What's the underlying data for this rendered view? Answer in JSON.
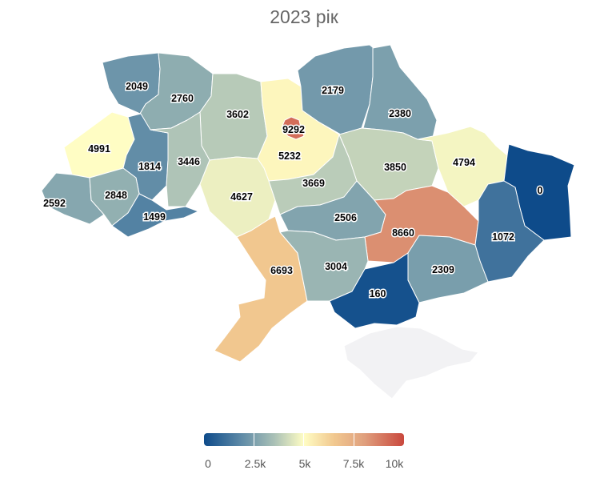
{
  "title": "2023 рік",
  "chart_data": {
    "type": "choropleth",
    "title": "2023 рік",
    "color_scale": {
      "min": 0,
      "max": 10000,
      "ticks": [
        "0",
        "2.5k",
        "5k",
        "7.5k",
        "10k"
      ],
      "colors": [
        "#0e4b8a",
        "#5b88a6",
        "#a9c0b6",
        "#fffdc4",
        "#f1c88f",
        "#e0a07e",
        "#c9483d"
      ]
    },
    "regions": [
      {
        "id": "volyn",
        "value": 2049,
        "label": "2049"
      },
      {
        "id": "rivne",
        "value": 2760,
        "label": "2760"
      },
      {
        "id": "zhytomyr",
        "value": 3602,
        "label": "3602"
      },
      {
        "id": "kyiv-oblast",
        "value": 5232,
        "label": "5232"
      },
      {
        "id": "kyiv-city",
        "value": 9292,
        "label": "9292"
      },
      {
        "id": "chernihiv",
        "value": 2179,
        "label": "2179"
      },
      {
        "id": "sumy",
        "value": 2380,
        "label": "2380"
      },
      {
        "id": "lviv",
        "value": 4991,
        "label": "4991"
      },
      {
        "id": "ternopil",
        "value": 1814,
        "label": "1814"
      },
      {
        "id": "khmelnytskyi",
        "value": 3446,
        "label": "3446"
      },
      {
        "id": "vinnytsia",
        "value": 4627,
        "label": "4627"
      },
      {
        "id": "cherkasy",
        "value": 3669,
        "label": "3669"
      },
      {
        "id": "poltava",
        "value": 3850,
        "label": "3850"
      },
      {
        "id": "kharkiv",
        "value": 4794,
        "label": "4794"
      },
      {
        "id": "luhansk",
        "value": 0,
        "label": "0"
      },
      {
        "id": "zakarpattia",
        "value": 2592,
        "label": "2592"
      },
      {
        "id": "ivano-frankivsk",
        "value": 2848,
        "label": "2848"
      },
      {
        "id": "chernivtsi",
        "value": 1499,
        "label": "1499"
      },
      {
        "id": "kirovohrad",
        "value": 2506,
        "label": "2506"
      },
      {
        "id": "dnipropetrovsk",
        "value": 8660,
        "label": "8660"
      },
      {
        "id": "donetsk",
        "value": 1072,
        "label": "1072"
      },
      {
        "id": "odesa",
        "value": 6693,
        "label": "6693"
      },
      {
        "id": "mykolaiv",
        "value": 3004,
        "label": "3004"
      },
      {
        "id": "zaporizhzhia",
        "value": 2309,
        "label": "2309"
      },
      {
        "id": "kherson",
        "value": 160,
        "label": "160"
      },
      {
        "id": "crimea",
        "value": null,
        "label": ""
      }
    ]
  }
}
